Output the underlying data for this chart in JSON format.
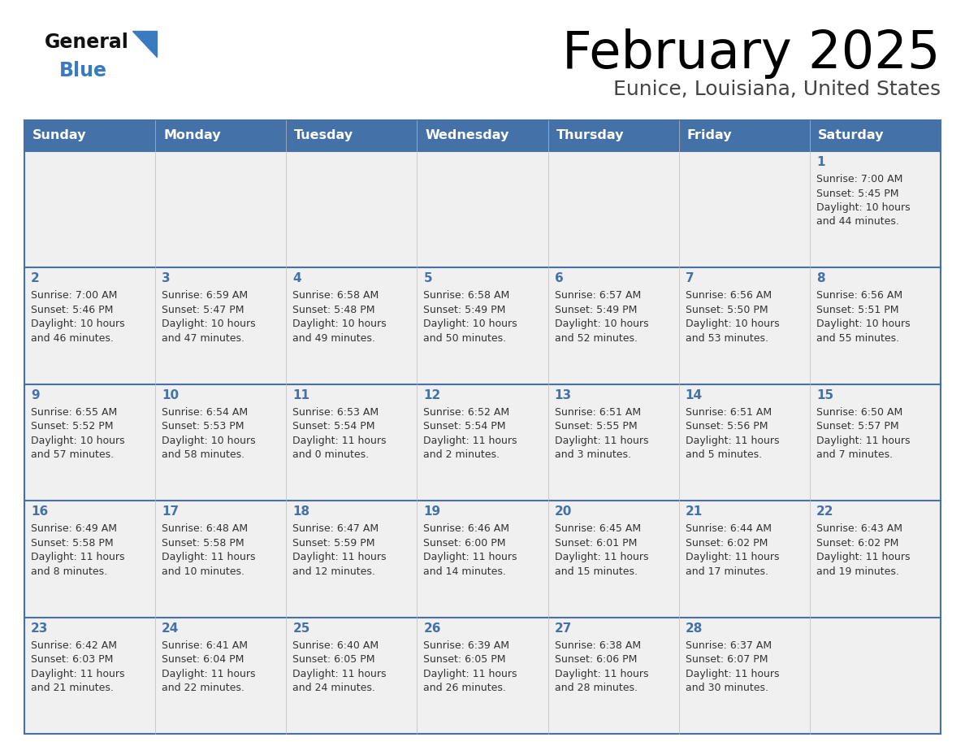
{
  "title": "February 2025",
  "subtitle": "Eunice, Louisiana, United States",
  "days_of_week": [
    "Sunday",
    "Monday",
    "Tuesday",
    "Wednesday",
    "Thursday",
    "Friday",
    "Saturday"
  ],
  "header_bg": "#4472a8",
  "header_text": "#ffffff",
  "cell_bg": "#f0f0f0",
  "border_color": "#4472a8",
  "separator_color": "#4472a8",
  "day_num_color": "#4472a8",
  "text_color": "#333333",
  "logo_general_color": "#111111",
  "logo_blue_color": "#3a7bbf",
  "logo_triangle_color": "#3a7bbf",
  "calendar_data": [
    [
      null,
      null,
      null,
      null,
      null,
      null,
      {
        "day": 1,
        "sunrise": "7:00 AM",
        "sunset": "5:45 PM",
        "daylight": "10 hours and 44 minutes."
      }
    ],
    [
      {
        "day": 2,
        "sunrise": "7:00 AM",
        "sunset": "5:46 PM",
        "daylight": "10 hours and 46 minutes."
      },
      {
        "day": 3,
        "sunrise": "6:59 AM",
        "sunset": "5:47 PM",
        "daylight": "10 hours and 47 minutes."
      },
      {
        "day": 4,
        "sunrise": "6:58 AM",
        "sunset": "5:48 PM",
        "daylight": "10 hours and 49 minutes."
      },
      {
        "day": 5,
        "sunrise": "6:58 AM",
        "sunset": "5:49 PM",
        "daylight": "10 hours and 50 minutes."
      },
      {
        "day": 6,
        "sunrise": "6:57 AM",
        "sunset": "5:49 PM",
        "daylight": "10 hours and 52 minutes."
      },
      {
        "day": 7,
        "sunrise": "6:56 AM",
        "sunset": "5:50 PM",
        "daylight": "10 hours and 53 minutes."
      },
      {
        "day": 8,
        "sunrise": "6:56 AM",
        "sunset": "5:51 PM",
        "daylight": "10 hours and 55 minutes."
      }
    ],
    [
      {
        "day": 9,
        "sunrise": "6:55 AM",
        "sunset": "5:52 PM",
        "daylight": "10 hours and 57 minutes."
      },
      {
        "day": 10,
        "sunrise": "6:54 AM",
        "sunset": "5:53 PM",
        "daylight": "10 hours and 58 minutes."
      },
      {
        "day": 11,
        "sunrise": "6:53 AM",
        "sunset": "5:54 PM",
        "daylight": "11 hours and 0 minutes."
      },
      {
        "day": 12,
        "sunrise": "6:52 AM",
        "sunset": "5:54 PM",
        "daylight": "11 hours and 2 minutes."
      },
      {
        "day": 13,
        "sunrise": "6:51 AM",
        "sunset": "5:55 PM",
        "daylight": "11 hours and 3 minutes."
      },
      {
        "day": 14,
        "sunrise": "6:51 AM",
        "sunset": "5:56 PM",
        "daylight": "11 hours and 5 minutes."
      },
      {
        "day": 15,
        "sunrise": "6:50 AM",
        "sunset": "5:57 PM",
        "daylight": "11 hours and 7 minutes."
      }
    ],
    [
      {
        "day": 16,
        "sunrise": "6:49 AM",
        "sunset": "5:58 PM",
        "daylight": "11 hours and 8 minutes."
      },
      {
        "day": 17,
        "sunrise": "6:48 AM",
        "sunset": "5:58 PM",
        "daylight": "11 hours and 10 minutes."
      },
      {
        "day": 18,
        "sunrise": "6:47 AM",
        "sunset": "5:59 PM",
        "daylight": "11 hours and 12 minutes."
      },
      {
        "day": 19,
        "sunrise": "6:46 AM",
        "sunset": "6:00 PM",
        "daylight": "11 hours and 14 minutes."
      },
      {
        "day": 20,
        "sunrise": "6:45 AM",
        "sunset": "6:01 PM",
        "daylight": "11 hours and 15 minutes."
      },
      {
        "day": 21,
        "sunrise": "6:44 AM",
        "sunset": "6:02 PM",
        "daylight": "11 hours and 17 minutes."
      },
      {
        "day": 22,
        "sunrise": "6:43 AM",
        "sunset": "6:02 PM",
        "daylight": "11 hours and 19 minutes."
      }
    ],
    [
      {
        "day": 23,
        "sunrise": "6:42 AM",
        "sunset": "6:03 PM",
        "daylight": "11 hours and 21 minutes."
      },
      {
        "day": 24,
        "sunrise": "6:41 AM",
        "sunset": "6:04 PM",
        "daylight": "11 hours and 22 minutes."
      },
      {
        "day": 25,
        "sunrise": "6:40 AM",
        "sunset": "6:05 PM",
        "daylight": "11 hours and 24 minutes."
      },
      {
        "day": 26,
        "sunrise": "6:39 AM",
        "sunset": "6:05 PM",
        "daylight": "11 hours and 26 minutes."
      },
      {
        "day": 27,
        "sunrise": "6:38 AM",
        "sunset": "6:06 PM",
        "daylight": "11 hours and 28 minutes."
      },
      {
        "day": 28,
        "sunrise": "6:37 AM",
        "sunset": "6:07 PM",
        "daylight": "11 hours and 30 minutes."
      },
      null
    ]
  ]
}
